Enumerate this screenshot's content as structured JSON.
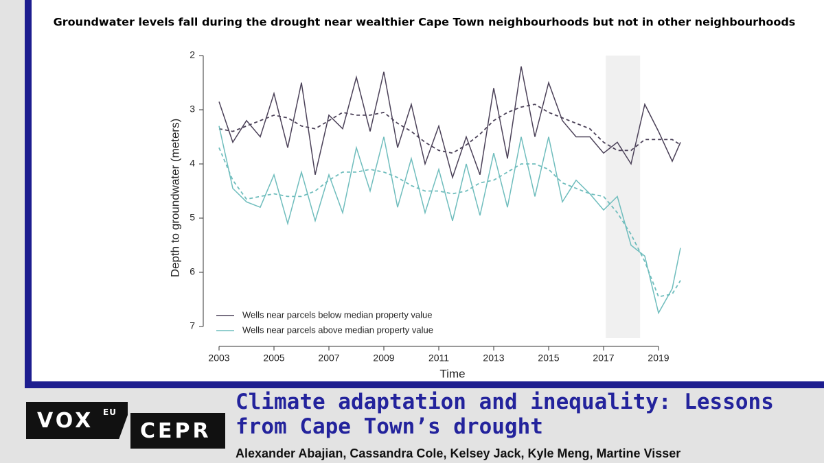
{
  "chart_data": {
    "type": "line",
    "title": "Groundwater levels fall during the drought near wealthier Cape Town neighbourhoods but not in other neighbourhoods",
    "xlabel": "Time",
    "ylabel": "Depth to groundwater (meters)",
    "x": [
      2003,
      2003.5,
      2004,
      2004.5,
      2005,
      2005.5,
      2006,
      2006.5,
      2007,
      2007.5,
      2008,
      2008.5,
      2009,
      2009.5,
      2010,
      2010.5,
      2011,
      2011.5,
      2012,
      2012.5,
      2013,
      2013.5,
      2014,
      2014.5,
      2015,
      2015.5,
      2016,
      2016.5,
      2017,
      2017.5,
      2018,
      2018.5,
      2019,
      2019.5,
      2019.8
    ],
    "series": [
      {
        "name": "Wells near parcels below median property value",
        "color": "#4b4158",
        "values": [
          2.85,
          3.6,
          3.2,
          3.5,
          2.7,
          3.7,
          2.5,
          4.2,
          3.1,
          3.35,
          2.4,
          3.4,
          2.3,
          3.7,
          2.9,
          4.0,
          3.3,
          4.25,
          3.5,
          4.2,
          2.6,
          3.9,
          2.2,
          3.5,
          2.5,
          3.2,
          3.5,
          3.5,
          3.8,
          3.6,
          4.0,
          2.9,
          3.4,
          3.95,
          3.6
        ],
        "trend": [
          3.35,
          3.4,
          3.3,
          3.2,
          3.1,
          3.15,
          3.3,
          3.35,
          3.2,
          3.05,
          3.1,
          3.1,
          3.05,
          3.25,
          3.4,
          3.6,
          3.75,
          3.8,
          3.65,
          3.45,
          3.2,
          3.05,
          2.95,
          2.9,
          3.05,
          3.15,
          3.25,
          3.35,
          3.6,
          3.75,
          3.75,
          3.55,
          3.55,
          3.55,
          3.65
        ]
      },
      {
        "name": "Wells near parcels above median property value",
        "color": "#6fbdbd",
        "values": [
          3.3,
          4.45,
          4.7,
          4.8,
          4.2,
          5.1,
          4.15,
          5.05,
          4.2,
          4.9,
          3.7,
          4.5,
          3.5,
          4.8,
          3.9,
          4.9,
          4.1,
          5.05,
          4.0,
          4.95,
          3.8,
          4.8,
          3.5,
          4.6,
          3.5,
          4.7,
          4.3,
          4.55,
          4.85,
          4.6,
          5.5,
          5.7,
          6.75,
          6.3,
          5.55
        ],
        "trend": [
          3.7,
          4.3,
          4.65,
          4.6,
          4.55,
          4.6,
          4.6,
          4.5,
          4.3,
          4.15,
          4.15,
          4.1,
          4.15,
          4.25,
          4.4,
          4.5,
          4.5,
          4.55,
          4.5,
          4.35,
          4.3,
          4.15,
          4.0,
          4.0,
          4.1,
          4.35,
          4.45,
          4.55,
          4.6,
          4.9,
          5.3,
          5.8,
          6.45,
          6.4,
          6.15
        ]
      }
    ],
    "xlim": [
      2002.8,
      2019.8
    ],
    "xticks": [
      2003,
      2005,
      2007,
      2009,
      2011,
      2013,
      2015,
      2017,
      2019
    ],
    "ylim": [
      2,
      7
    ],
    "yticks": [
      2,
      3,
      4,
      5,
      6,
      7
    ],
    "y_inverted": true,
    "shaded_region": [
      2017.08,
      2018.33
    ],
    "shade_color": "#f0f0f0",
    "legend": "lower left"
  },
  "branding": {
    "logo": [
      "VOX",
      "EU",
      "CEPR"
    ],
    "headline": "Climate adaptation and inequality: Lessons from Cape Town’s drought",
    "authors": "Alexander Abajian, Cassandra Cole, Kelsey Jack, Kyle Meng, Martine Visser"
  }
}
